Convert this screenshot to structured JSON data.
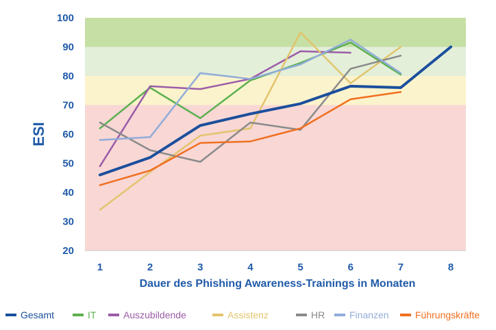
{
  "chart_data": {
    "type": "line",
    "xlabel": "Dauer des Phishing Awareness-Trainings in Monaten",
    "ylabel": "ESI",
    "x": [
      1,
      2,
      3,
      4,
      5,
      6,
      7,
      8
    ],
    "xlim": [
      0.7,
      8.3
    ],
    "ylim": [
      20,
      100
    ],
    "yticks": [
      20,
      30,
      40,
      50,
      60,
      70,
      80,
      90,
      100
    ],
    "grid": false,
    "legend_position": "bottom",
    "bands": [
      {
        "from": 20,
        "to": 70,
        "color": "#f8d7d5"
      },
      {
        "from": 70,
        "to": 80,
        "color": "#fbf3cc"
      },
      {
        "from": 80,
        "to": 90,
        "color": "#e3efd9"
      },
      {
        "from": 90,
        "to": 100,
        "color": "#c5dfa4"
      }
    ],
    "series": [
      {
        "name": "Gesamt",
        "color": "#1b4f9c",
        "width": 4,
        "values": [
          46,
          52,
          63,
          67,
          70.5,
          76.5,
          76,
          90
        ]
      },
      {
        "name": "IT",
        "color": "#5cb04f",
        "width": 2.5,
        "values": [
          62,
          76,
          65.5,
          78.5,
          84.5,
          91.5,
          80.5,
          null
        ]
      },
      {
        "name": "Auszubildende",
        "color": "#9b5ca8",
        "width": 2.5,
        "values": [
          49,
          76.5,
          75.5,
          79,
          88.5,
          88,
          null,
          null
        ]
      },
      {
        "name": "Assistenz",
        "color": "#e2c46d",
        "width": 2.5,
        "values": [
          34,
          47,
          59.5,
          62,
          95,
          77.5,
          90,
          null
        ]
      },
      {
        "name": "HR",
        "color": "#8a8a8a",
        "width": 2.5,
        "values": [
          64,
          54.5,
          50.5,
          64,
          61.5,
          82.5,
          87,
          null
        ]
      },
      {
        "name": "Finanzen",
        "color": "#91acd9",
        "width": 2.5,
        "values": [
          58,
          59,
          81,
          79,
          84,
          92.5,
          81,
          null
        ]
      },
      {
        "name": "Führungskräfte",
        "color": "#f06f1f",
        "width": 2.5,
        "values": [
          42.5,
          47.5,
          57,
          57.5,
          62,
          72,
          74.5,
          null
        ]
      }
    ]
  }
}
